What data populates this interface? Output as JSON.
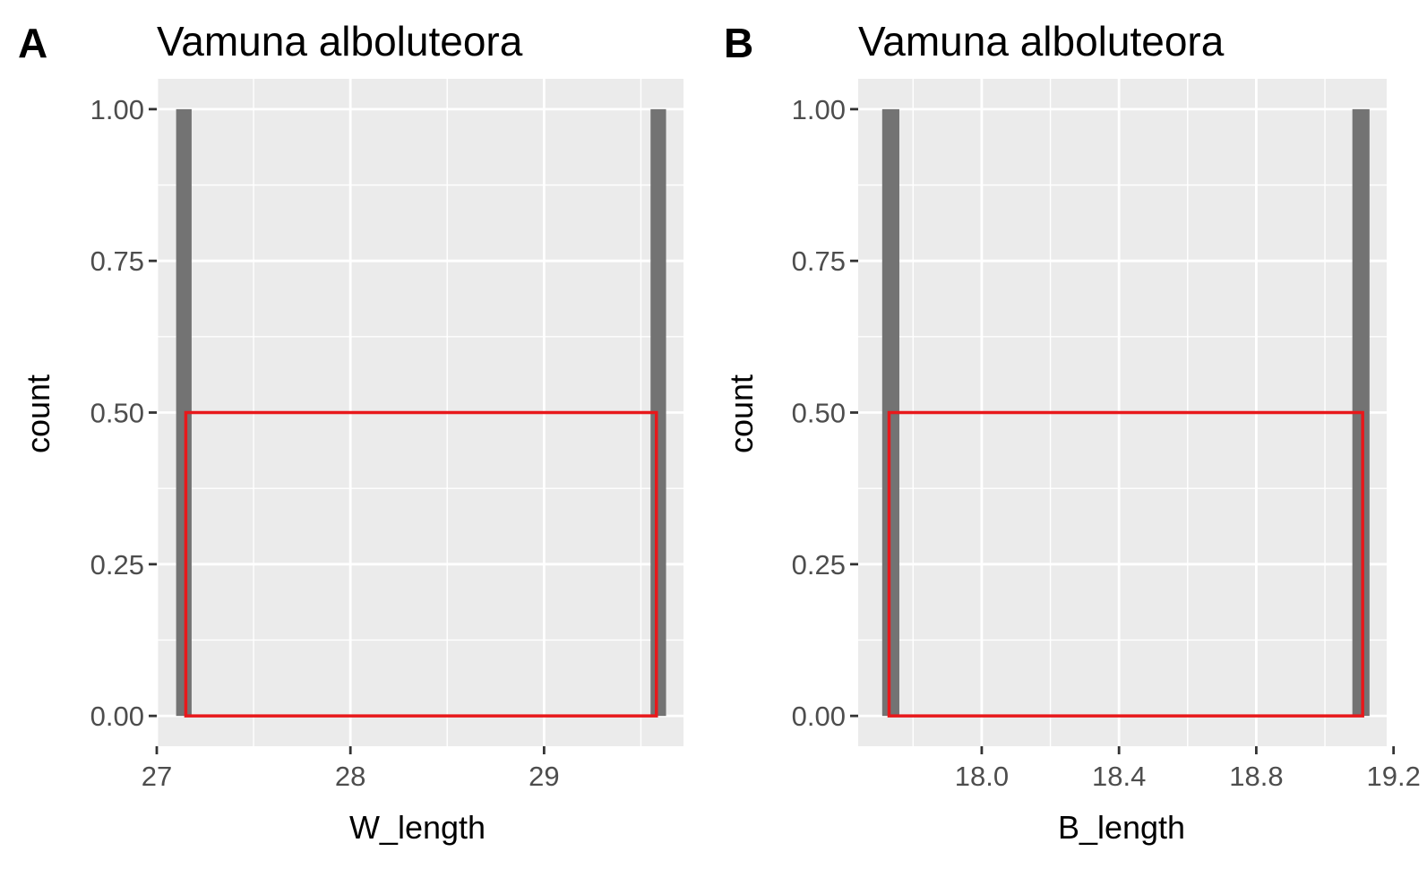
{
  "chart_data": [
    {
      "type": "bar",
      "panel_tag": "A",
      "title": "Vamuna alboluteora",
      "xlabel": "W_length",
      "ylabel": "count",
      "xlim": [
        27.0,
        29.72
      ],
      "ylim": [
        -0.05,
        1.05
      ],
      "x_ticks": [
        {
          "value": 27,
          "label": "27"
        },
        {
          "value": 28,
          "label": "28"
        },
        {
          "value": 29,
          "label": "29"
        }
      ],
      "y_ticks": [
        {
          "value": 0.0,
          "label": "0.00"
        },
        {
          "value": 0.25,
          "label": "0.25"
        },
        {
          "value": 0.5,
          "label": "0.50"
        },
        {
          "value": 0.75,
          "label": "0.75"
        },
        {
          "value": 1.0,
          "label": "1.00"
        }
      ],
      "bars": [
        {
          "x_start": 27.1,
          "x_end": 27.18,
          "count": 1
        },
        {
          "x_start": 29.55,
          "x_end": 29.63,
          "count": 1
        }
      ],
      "outline_box": {
        "x_start": 27.15,
        "x_end": 29.58,
        "y_start": 0,
        "y_end": 0.5,
        "color": "#e8181b"
      },
      "grid": true,
      "colors": {
        "bar": "#737373",
        "panel": "#ebebeb",
        "grid": "#ffffff",
        "box": "#e8181b"
      }
    },
    {
      "type": "bar",
      "panel_tag": "B",
      "title": "Vamuna alboluteora",
      "xlabel": "B_length",
      "ylabel": "count",
      "xlim": [
        17.64,
        19.18
      ],
      "ylim": [
        -0.05,
        1.05
      ],
      "x_ticks": [
        {
          "value": 18.0,
          "label": "18.0"
        },
        {
          "value": 18.4,
          "label": "18.4"
        },
        {
          "value": 18.8,
          "label": "18.8"
        },
        {
          "value": 19.2,
          "label": "19.2"
        }
      ],
      "y_ticks": [
        {
          "value": 0.0,
          "label": "0.00"
        },
        {
          "value": 0.25,
          "label": "0.25"
        },
        {
          "value": 0.5,
          "label": "0.50"
        },
        {
          "value": 0.75,
          "label": "0.75"
        },
        {
          "value": 1.0,
          "label": "1.00"
        }
      ],
      "bars": [
        {
          "x_start": 17.71,
          "x_end": 17.76,
          "count": 1
        },
        {
          "x_start": 19.08,
          "x_end": 19.13,
          "count": 1
        }
      ],
      "outline_box": {
        "x_start": 17.73,
        "x_end": 19.11,
        "y_start": 0,
        "y_end": 0.5,
        "color": "#e8181b"
      },
      "grid": true,
      "colors": {
        "bar": "#737373",
        "panel": "#ebebeb",
        "grid": "#ffffff",
        "box": "#e8181b"
      }
    }
  ]
}
